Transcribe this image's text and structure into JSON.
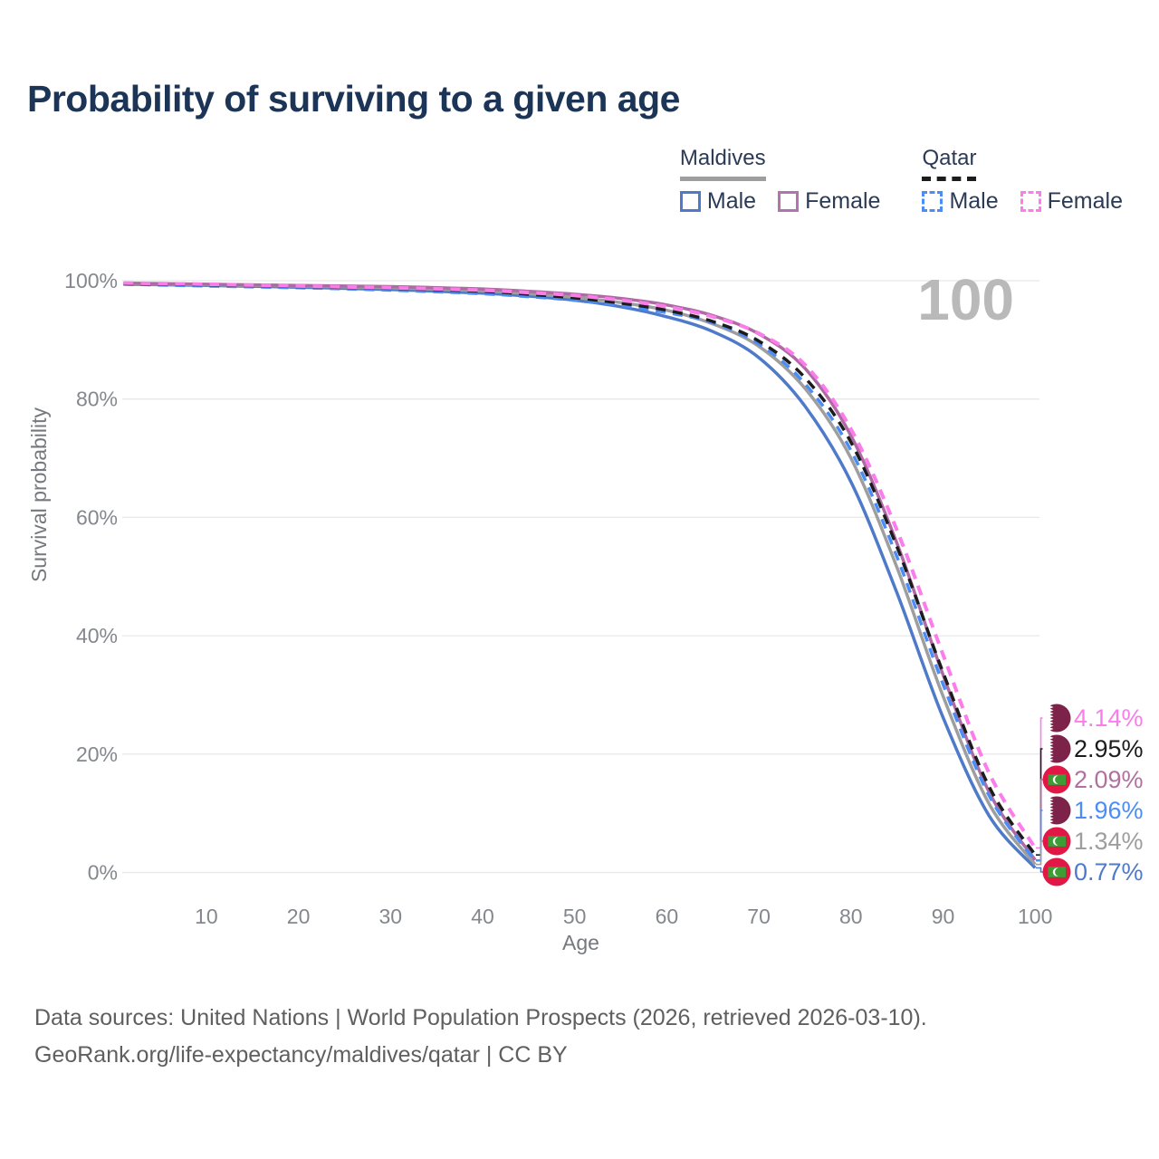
{
  "header": {
    "title": "Probability of surviving to a given age"
  },
  "legend": {
    "groups": [
      {
        "name": "Maldives",
        "line_style": "solid",
        "underline_color": "#9e9e9e",
        "items": [
          {
            "label": "Male",
            "color": "#4e7ac9",
            "dashed": false
          },
          {
            "label": "Female",
            "color": "#b273ae",
            "dashed": false
          }
        ]
      },
      {
        "name": "Qatar",
        "line_style": "dashed",
        "underline_color": "#1c1c1c",
        "items": [
          {
            "label": "Male",
            "color": "#4c8df5",
            "dashed": true
          },
          {
            "label": "Female",
            "color": "#fa7de9",
            "dashed": true
          }
        ]
      }
    ]
  },
  "hover": {
    "age_label": "100"
  },
  "axes": {
    "y": {
      "title": "Survival probability",
      "ticks": [
        {
          "value": 0,
          "label": "0%"
        },
        {
          "value": 20,
          "label": "20%"
        },
        {
          "value": 40,
          "label": "40%"
        },
        {
          "value": 60,
          "label": "60%"
        },
        {
          "value": 80,
          "label": "80%"
        },
        {
          "value": 100,
          "label": "100%"
        }
      ]
    },
    "x": {
      "title": "Age",
      "ticks": [
        10,
        20,
        30,
        40,
        50,
        60,
        70,
        80,
        90,
        100
      ]
    }
  },
  "end_labels": [
    {
      "series": "qatar-female",
      "value": "4.14%",
      "value_num": 4.14,
      "color": "#fa7de9",
      "flag": "qatar"
    },
    {
      "series": "qatar-both",
      "value": "2.95%",
      "value_num": 2.95,
      "color": "#1c1c1c",
      "flag": "qatar"
    },
    {
      "series": "maldives-female",
      "value": "2.09%",
      "value_num": 2.09,
      "color": "#b0719f",
      "flag": "maldives"
    },
    {
      "series": "qatar-male",
      "value": "1.96%",
      "value_num": 1.96,
      "color": "#4c8df5",
      "flag": "qatar"
    },
    {
      "series": "maldives-both",
      "value": "1.34%",
      "value_num": 1.34,
      "color": "#9e9e9e",
      "flag": "maldives"
    },
    {
      "series": "maldives-male",
      "value": "0.77%",
      "value_num": 0.77,
      "color": "#4e7ac9",
      "flag": "maldives"
    }
  ],
  "flag_colors": {
    "qatar_maroon": "#7d2248",
    "maldives_red": "#e11845",
    "maldives_green": "#3d9c35",
    "white": "#ffffff"
  },
  "footer": {
    "line1": "Data sources: United Nations | World Population Prospects (2026, retrieved 2026-03-10).",
    "line2": "GeoRank.org/life-expectancy/maldives/qatar | CC BY"
  },
  "chart_data": {
    "type": "line",
    "title": "Probability of surviving to a given age",
    "xlabel": "Age",
    "ylabel": "Survival probability",
    "xlim": [
      1,
      100
    ],
    "ylim": [
      0,
      100
    ],
    "grid": "horizontal",
    "legend_position": "top-right",
    "x": [
      1,
      10,
      20,
      30,
      40,
      45,
      50,
      55,
      60,
      65,
      70,
      75,
      80,
      85,
      90,
      95,
      100
    ],
    "series": [
      {
        "id": "maldives-male",
        "name": "Maldives Male",
        "color": "#4e7ac9",
        "dashed": false,
        "width": 3.5,
        "values": [
          99.4,
          99.2,
          98.9,
          98.5,
          97.9,
          97.4,
          96.7,
          95.6,
          93.9,
          91.4,
          87.0,
          78.8,
          66.0,
          47.2,
          26.2,
          9.6,
          0.77
        ]
      },
      {
        "id": "maldives-both",
        "name": "Maldives Both sexes",
        "color": "#9e9e9e",
        "dashed": false,
        "width": 3.5,
        "values": [
          99.5,
          99.3,
          99.1,
          98.8,
          98.3,
          97.8,
          97.2,
          96.3,
          95.0,
          92.7,
          88.9,
          81.8,
          70.0,
          51.5,
          29.8,
          11.6,
          1.34
        ]
      },
      {
        "id": "maldives-female",
        "name": "Maldives Female",
        "color": "#ae6aa3",
        "dashed": false,
        "width": 3.5,
        "values": [
          99.6,
          99.4,
          99.2,
          99.0,
          98.6,
          98.2,
          97.7,
          97.0,
          95.9,
          94.1,
          91.0,
          85.2,
          73.8,
          55.6,
          33.4,
          13.6,
          2.09
        ]
      },
      {
        "id": "qatar-male",
        "name": "Qatar Male",
        "color": "#4c8df5",
        "dashed": true,
        "width": 3.5,
        "values": [
          99.4,
          99.1,
          98.8,
          98.4,
          97.8,
          97.3,
          96.7,
          95.8,
          94.6,
          92.9,
          89.3,
          82.6,
          71.3,
          53.3,
          31.8,
          13.0,
          1.96
        ]
      },
      {
        "id": "qatar-both",
        "name": "Qatar Both sexes",
        "color": "#1c1c1c",
        "dashed": true,
        "width": 3.5,
        "values": [
          99.5,
          99.3,
          99.0,
          98.7,
          98.2,
          97.7,
          97.1,
          96.2,
          95.0,
          93.1,
          89.8,
          83.6,
          72.7,
          55.0,
          33.8,
          14.5,
          2.95
        ]
      },
      {
        "id": "qatar-female",
        "name": "Qatar Female",
        "color": "#fa7de9",
        "dashed": true,
        "width": 4,
        "values": [
          99.6,
          99.4,
          99.1,
          98.8,
          98.4,
          98.0,
          97.5,
          96.7,
          95.6,
          93.9,
          91.1,
          85.8,
          74.9,
          57.8,
          36.8,
          16.8,
          4.14
        ]
      }
    ]
  }
}
